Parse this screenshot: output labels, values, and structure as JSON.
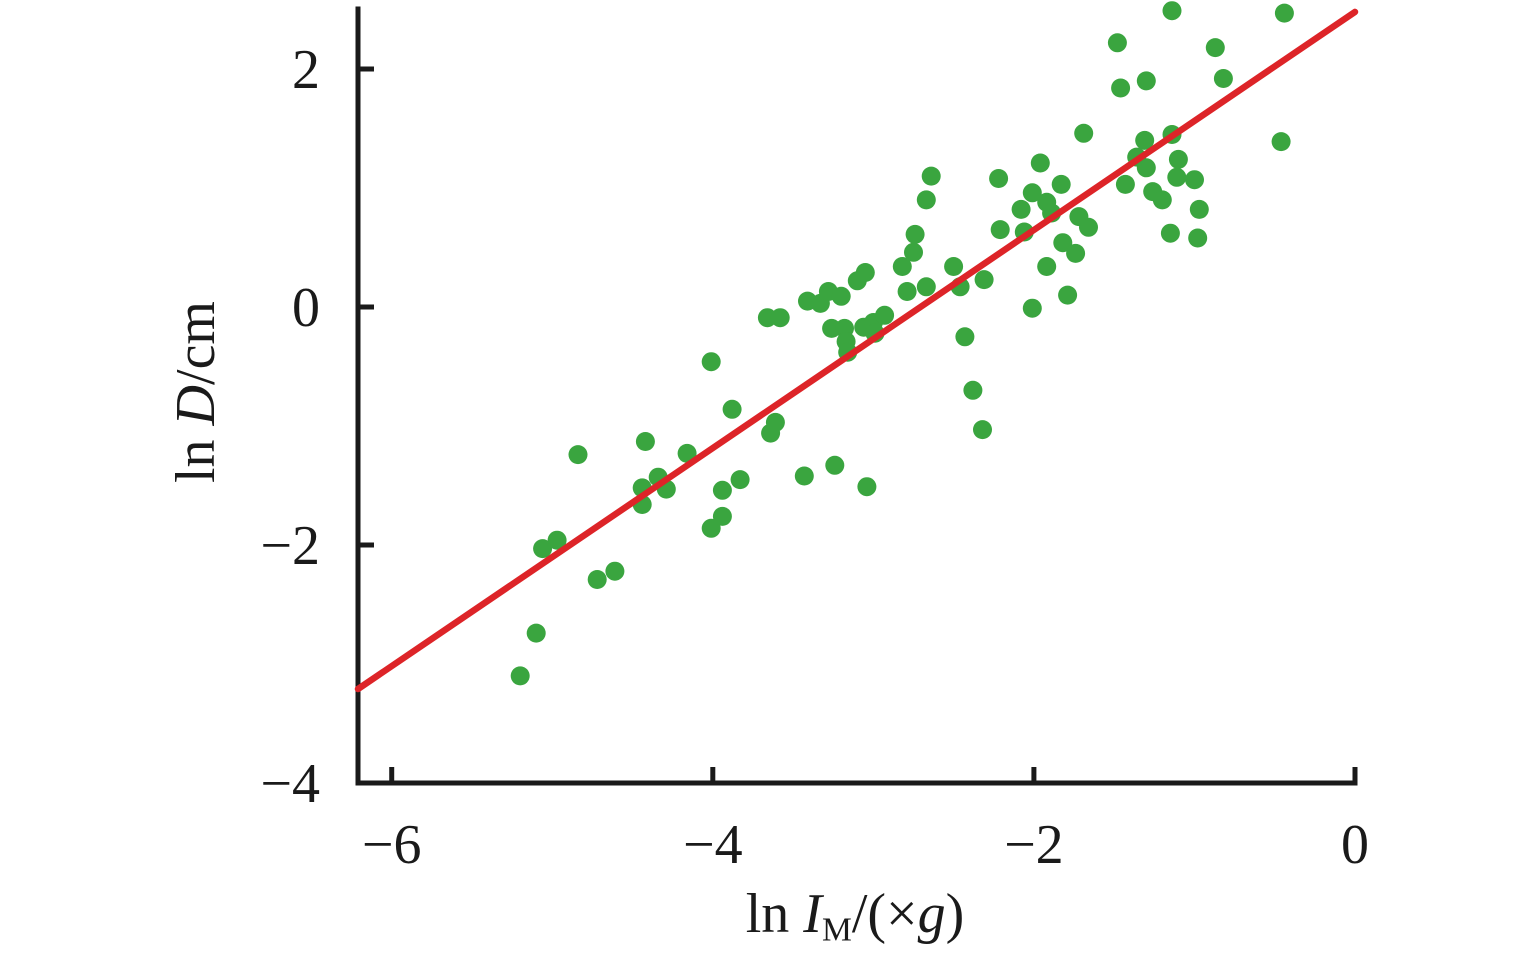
{
  "figure": {
    "background": "#ffffff",
    "description": "Scatter plot of droplet size ln D/cm versus centrifugal intensity ln IM/(×g) with a red linear regression line and green data points"
  },
  "chart_data": {
    "type": "scatter",
    "title": "",
    "grid": false,
    "legend": null,
    "point_color": "#3aa53f",
    "line_color": "#dd2428",
    "axis_color": "#1a1a1a",
    "xlabel": {
      "prefix": "ln ",
      "symbol": "I",
      "subscript": "M",
      "mid": "/(×",
      "symbol2": "g",
      "close": ")"
    },
    "ylabel": {
      "prefix": "ln ",
      "symbol": "D",
      "suffix": "/cm"
    },
    "xlim": [
      -6.21,
      0
    ],
    "ylim": [
      -4,
      2.5
    ],
    "x_ticks": [
      {
        "value": -6,
        "label": "−6"
      },
      {
        "value": -4,
        "label": "−4"
      },
      {
        "value": -2,
        "label": "−2"
      },
      {
        "value": 0,
        "label": "0"
      }
    ],
    "y_ticks": [
      {
        "value": 2,
        "label": "2"
      },
      {
        "value": 0,
        "label": "0"
      },
      {
        "value": -2,
        "label": "−2"
      },
      {
        "value": -4,
        "label": "−4"
      }
    ],
    "fit_line": {
      "x1": -6.21,
      "y1": -3.21,
      "x2": 0,
      "y2": 2.48,
      "slope": 0.92,
      "intercept": 2.48
    },
    "points": [
      [
        -5.2,
        -3.1
      ],
      [
        -5.1,
        -2.74
      ],
      [
        -5.06,
        -2.03
      ],
      [
        -4.97,
        -1.96
      ],
      [
        -4.84,
        -1.24
      ],
      [
        -4.72,
        -2.29
      ],
      [
        -4.61,
        -2.22
      ],
      [
        -4.44,
        -1.52
      ],
      [
        -4.44,
        -1.66
      ],
      [
        -4.42,
        -1.13
      ],
      [
        -4.34,
        -1.43
      ],
      [
        -4.29,
        -1.53
      ],
      [
        -4.16,
        -1.23
      ],
      [
        -4.01,
        -1.86
      ],
      [
        -4.01,
        -0.46
      ],
      [
        -3.94,
        -1.54
      ],
      [
        -3.94,
        -1.76
      ],
      [
        -3.88,
        -0.86
      ],
      [
        -3.83,
        -1.45
      ],
      [
        -3.66,
        -0.09
      ],
      [
        -3.64,
        -1.06
      ],
      [
        -3.61,
        -0.97
      ],
      [
        -3.58,
        -0.09
      ],
      [
        -3.43,
        -1.42
      ],
      [
        -3.41,
        0.05
      ],
      [
        -3.33,
        0.03
      ],
      [
        -3.28,
        0.13
      ],
      [
        -3.26,
        -0.18
      ],
      [
        -3.24,
        -1.33
      ],
      [
        -3.2,
        0.09
      ],
      [
        -3.18,
        -0.18
      ],
      [
        -3.17,
        -0.29
      ],
      [
        -3.16,
        -0.38
      ],
      [
        -3.1,
        0.22
      ],
      [
        -3.06,
        -0.17
      ],
      [
        -3.05,
        0.29
      ],
      [
        -3.04,
        -1.51
      ],
      [
        -3.0,
        -0.13
      ],
      [
        -2.99,
        -0.22
      ],
      [
        -2.93,
        -0.07
      ],
      [
        -2.82,
        0.34
      ],
      [
        -2.79,
        0.13
      ],
      [
        -2.75,
        0.46
      ],
      [
        -2.74,
        0.61
      ],
      [
        -2.67,
        0.17
      ],
      [
        -2.67,
        0.9
      ],
      [
        -2.64,
        1.1
      ],
      [
        -2.5,
        0.34
      ],
      [
        -2.46,
        0.17
      ],
      [
        -2.43,
        -0.25
      ],
      [
        -2.38,
        -0.7
      ],
      [
        -2.32,
        -1.03
      ],
      [
        -2.31,
        0.23
      ],
      [
        -2.22,
        1.08
      ],
      [
        -2.21,
        0.65
      ],
      [
        -2.08,
        0.82
      ],
      [
        -2.06,
        0.63
      ],
      [
        -2.01,
        0.96
      ],
      [
        -2.01,
        -0.01
      ],
      [
        -1.96,
        1.21
      ],
      [
        -1.92,
        0.88
      ],
      [
        -1.92,
        0.34
      ],
      [
        -1.89,
        0.79
      ],
      [
        -1.83,
        1.03
      ],
      [
        -1.82,
        0.54
      ],
      [
        -1.79,
        0.1
      ],
      [
        -1.74,
        0.45
      ],
      [
        -1.72,
        0.76
      ],
      [
        -1.69,
        1.46
      ],
      [
        -1.66,
        0.67
      ],
      [
        -1.48,
        2.22
      ],
      [
        -1.46,
        1.84
      ],
      [
        -1.43,
        1.03
      ],
      [
        -1.36,
        1.26
      ],
      [
        -1.31,
        1.4
      ],
      [
        -1.3,
        1.9
      ],
      [
        -1.3,
        1.17
      ],
      [
        -1.26,
        0.97
      ],
      [
        -1.2,
        0.9
      ],
      [
        -1.15,
        0.62
      ],
      [
        -1.14,
        2.49
      ],
      [
        -1.14,
        1.45
      ],
      [
        -1.11,
        1.09
      ],
      [
        -1.1,
        1.24
      ],
      [
        -1.0,
        1.07
      ],
      [
        -0.98,
        0.58
      ],
      [
        -0.97,
        0.82
      ],
      [
        -0.87,
        2.18
      ],
      [
        -0.82,
        1.92
      ],
      [
        -0.46,
        1.39
      ],
      [
        -0.44,
        2.47
      ]
    ]
  }
}
